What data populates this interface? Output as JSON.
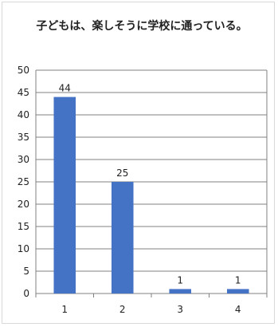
{
  "chart_data": {
    "type": "bar",
    "title": "子どもは、楽しそうに学校に通っている。",
    "categories": [
      "1",
      "2",
      "3",
      "4"
    ],
    "values": [
      44,
      25,
      1,
      1
    ],
    "data_labels": [
      "44",
      "25",
      "1",
      "1"
    ],
    "xlabel": "",
    "ylabel": "",
    "ylim": [
      0,
      50
    ],
    "y_ticks": [
      0,
      5,
      10,
      15,
      20,
      25,
      30,
      35,
      40,
      45,
      50
    ],
    "grid": true,
    "legend": "none",
    "colors": {
      "bar": "#4472c4",
      "grid": "#808080",
      "frame": "#d9d9d9"
    }
  }
}
